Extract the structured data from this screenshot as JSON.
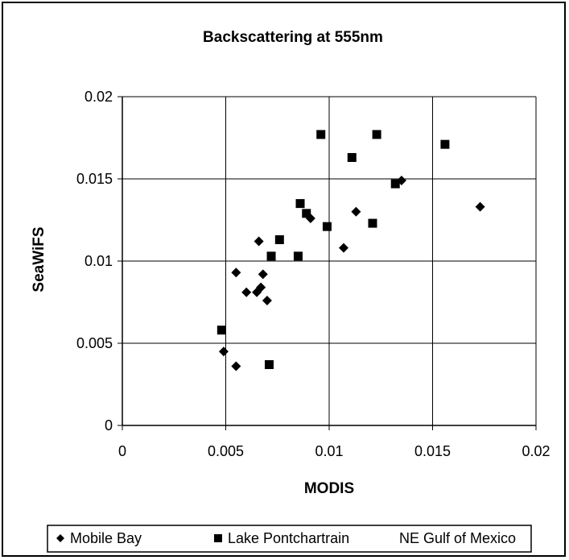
{
  "chart_data": {
    "type": "scatter",
    "title": "Backscattering at 555nm",
    "xlabel": "MODIS",
    "ylabel": "SeaWiFS",
    "xlim": [
      0,
      0.02
    ],
    "ylim": [
      0,
      0.02
    ],
    "xticks": [
      "0",
      "0.005",
      "0.01",
      "0.015",
      "0.02"
    ],
    "yticks": [
      "0",
      "0.005",
      "0.01",
      "0.015",
      "0.02"
    ],
    "grid": true,
    "legend_position": "bottom",
    "series": [
      {
        "name": "Mobile Bay",
        "marker": "diamond",
        "color": "#000000",
        "points": [
          [
            0.0049,
            0.0045
          ],
          [
            0.0055,
            0.0036
          ],
          [
            0.0055,
            0.0093
          ],
          [
            0.006,
            0.0081
          ],
          [
            0.0065,
            0.0081
          ],
          [
            0.0066,
            0.0112
          ],
          [
            0.0067,
            0.0084
          ],
          [
            0.0068,
            0.0092
          ],
          [
            0.007,
            0.0076
          ],
          [
            0.0091,
            0.0126
          ],
          [
            0.0107,
            0.0108
          ],
          [
            0.0113,
            0.013
          ],
          [
            0.0135,
            0.0149
          ],
          [
            0.0173,
            0.0133
          ]
        ]
      },
      {
        "name": "Lake Pontchartrain",
        "marker": "square",
        "color": "#000000",
        "points": [
          [
            0.0048,
            0.0058
          ],
          [
            0.0071,
            0.0037
          ],
          [
            0.0072,
            0.0103
          ],
          [
            0.0076,
            0.0113
          ],
          [
            0.0085,
            0.0103
          ],
          [
            0.0086,
            0.0135
          ],
          [
            0.0089,
            0.0129
          ],
          [
            0.0096,
            0.0177
          ],
          [
            0.0099,
            0.0121
          ],
          [
            0.0111,
            0.0163
          ],
          [
            0.0121,
            0.0123
          ],
          [
            0.0123,
            0.0177
          ],
          [
            0.0132,
            0.0147
          ],
          [
            0.0156,
            0.0171
          ]
        ]
      },
      {
        "name": "NE Gulf of Mexico",
        "marker": "none",
        "color": "#b0b0b0",
        "points": []
      }
    ]
  }
}
